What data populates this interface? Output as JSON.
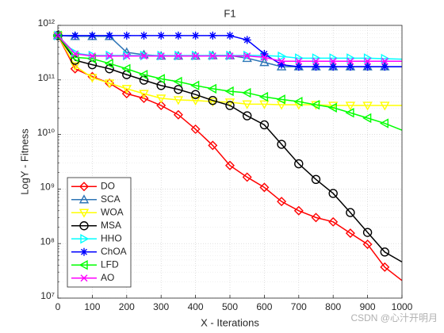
{
  "chart_data": {
    "type": "line",
    "title": "F1",
    "xlabel": "X - Iterations",
    "ylabel": "LogY - Fitness",
    "annotation": "CSDN @心汁开明月",
    "log_y": true,
    "grid": true,
    "legend": "lower left",
    "xlim": [
      0,
      1000
    ],
    "xticks": [
      0,
      100,
      200,
      300,
      400,
      500,
      600,
      700,
      800,
      900,
      1000
    ],
    "ylim": [
      10000000,
      1000000000000
    ],
    "yticks": [
      {
        "value": 10000000,
        "label": "10⁷"
      },
      {
        "value": 100000000,
        "label": "10⁸"
      },
      {
        "value": 1000000000,
        "label": "10⁹"
      },
      {
        "value": 10000000000,
        "label": "10¹⁰"
      },
      {
        "value": 100000000000,
        "label": "10¹¹"
      },
      {
        "value": 1000000000000,
        "label": "10¹²"
      }
    ],
    "x": [
      0,
      50,
      100,
      150,
      200,
      250,
      300,
      350,
      400,
      450,
      500,
      550,
      600,
      650,
      700,
      750,
      800,
      850,
      900,
      950,
      1000
    ],
    "series": [
      {
        "name": "DO",
        "color": "#ff0000",
        "marker": "diamond",
        "values": [
          650000000000,
          160000000000,
          115000000000,
          87000000000,
          56000000000,
          46000000000,
          34000000000,
          23000000000,
          12500000000,
          6300000000,
          2700000000,
          1650000000,
          1070000000,
          590000000,
          400000000,
          300000000,
          250000000,
          155000000,
          97000000,
          37000000,
          21000000
        ]
      },
      {
        "name": "SCA",
        "color": "#2e75b6",
        "marker": "triangle-up",
        "values": [
          650000000000,
          630000000000,
          630000000000,
          630000000000,
          320000000000,
          290000000000,
          275000000000,
          275000000000,
          275000000000,
          280000000000,
          280000000000,
          250000000000,
          210000000000,
          175000000000,
          175000000000,
          175000000000,
          175000000000,
          175000000000,
          175000000000,
          175000000000,
          175000000000
        ]
      },
      {
        "name": "WOA",
        "color": "#ffff00",
        "marker": "triangle-down",
        "values": [
          650000000000,
          180000000000,
          110000000000,
          87000000000,
          69000000000,
          56000000000,
          46000000000,
          43000000000,
          42000000000,
          40000000000,
          39000000000,
          36000000000,
          36000000000,
          35000000000,
          35000000000,
          35000000000,
          34000000000,
          34000000000,
          34000000000,
          34000000000,
          34000000000
        ]
      },
      {
        "name": "MSA",
        "color": "#000000",
        "marker": "circle",
        "values": [
          650000000000,
          230000000000,
          190000000000,
          160000000000,
          125000000000,
          99000000000,
          79000000000,
          67000000000,
          54000000000,
          42000000000,
          34000000000,
          22000000000,
          15000000000,
          6600000000,
          2900000000,
          1500000000,
          830000000,
          370000000,
          160000000,
          70000000,
          46000000
        ]
      },
      {
        "name": "HHO",
        "color": "#00ffff",
        "marker": "triangle-right",
        "values": [
          650000000000,
          310000000000,
          280000000000,
          280000000000,
          280000000000,
          280000000000,
          280000000000,
          280000000000,
          280000000000,
          280000000000,
          280000000000,
          280000000000,
          280000000000,
          270000000000,
          250000000000,
          250000000000,
          250000000000,
          250000000000,
          250000000000,
          245000000000,
          240000000000
        ]
      },
      {
        "name": "ChOA",
        "color": "#0000ff",
        "marker": "asterisk",
        "values": [
          650000000000,
          650000000000,
          650000000000,
          650000000000,
          650000000000,
          650000000000,
          650000000000,
          650000000000,
          650000000000,
          650000000000,
          650000000000,
          540000000000,
          300000000000,
          190000000000,
          175000000000,
          175000000000,
          175000000000,
          175000000000,
          175000000000,
          175000000000,
          175000000000
        ]
      },
      {
        "name": "LFD",
        "color": "#00ff00",
        "marker": "triangle-left",
        "values": [
          650000000000,
          260000000000,
          245000000000,
          200000000000,
          160000000000,
          125000000000,
          105000000000,
          93000000000,
          79000000000,
          69000000000,
          62000000000,
          58000000000,
          49000000000,
          44000000000,
          40000000000,
          35000000000,
          31000000000,
          25000000000,
          20000000000,
          16000000000,
          12000000000
        ]
      },
      {
        "name": "AO",
        "color": "#ff00ff",
        "marker": "x",
        "values": [
          650000000000,
          300000000000,
          275000000000,
          275000000000,
          275000000000,
          275000000000,
          275000000000,
          275000000000,
          275000000000,
          275000000000,
          275000000000,
          275000000000,
          260000000000,
          220000000000,
          220000000000,
          220000000000,
          220000000000,
          220000000000,
          220000000000,
          220000000000,
          220000000000
        ]
      }
    ]
  }
}
